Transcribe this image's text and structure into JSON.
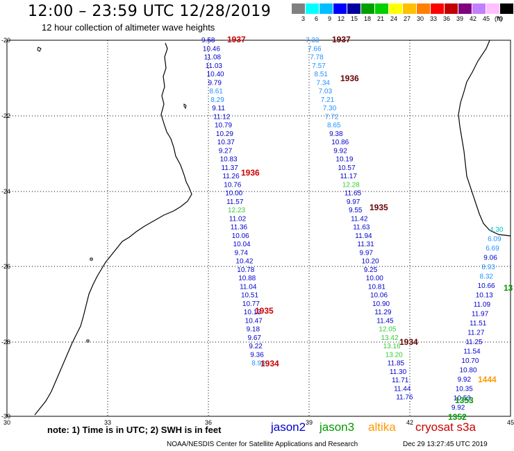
{
  "header": {
    "title": "12:00 – 23:59 UTC 12/28/2019",
    "subtitle": "12 hour collection of altimeter wave heights"
  },
  "colorbar": {
    "colors": [
      "#808080",
      "#00ffff",
      "#00bfff",
      "#0000ff",
      "#0000a0",
      "#00a000",
      "#00d000",
      "#ffff00",
      "#ffc000",
      "#ff8000",
      "#ff0000",
      "#c00000",
      "#800080",
      "#c080ff",
      "#ffc0ff",
      "#000000"
    ],
    "labels": [
      "3",
      "6",
      "9",
      "12",
      "15",
      "18",
      "21",
      "24",
      "27",
      "30",
      "33",
      "36",
      "39",
      "42",
      "45",
      "70"
    ],
    "unit": "(ft)"
  },
  "axes": {
    "x_ticks": [
      "30",
      "33",
      "36",
      "39",
      "42",
      "45"
    ],
    "y_ticks": [
      "-20",
      "-22",
      "-24",
      "-26",
      "-28",
      "-30"
    ]
  },
  "map": {
    "satellite_colors": {
      "jason2": "#0000cc",
      "jason3": "#009900",
      "altika": "#ff9900",
      "cryosat": "#cc0000"
    },
    "passes": [
      {
        "label": "1937",
        "color": "#cc0000"
      },
      {
        "label": "1936",
        "color": "#cc0000"
      },
      {
        "label": "1935",
        "color": "#cc0000"
      },
      {
        "label": "1934",
        "color": "#cc0000"
      },
      {
        "label": "1937",
        "color": "#660000"
      },
      {
        "label": "1936",
        "color": "#660000"
      },
      {
        "label": "1935",
        "color": "#660000"
      },
      {
        "label": "1934",
        "color": "#660000"
      },
      {
        "label": "1444",
        "color": "#ff9900"
      },
      {
        "label": "1353",
        "color": "#009900"
      },
      {
        "label": "1352",
        "color": "#009900"
      },
      {
        "label": "13",
        "color": "#009900"
      }
    ],
    "track1": [
      "9.58",
      "10.46",
      "11.08",
      "11.03",
      "10.40",
      "9.79",
      "8.61",
      "8.29",
      "9.11",
      "11.12",
      "10.79",
      "10.29",
      "10.37",
      "9.27",
      "10.83",
      "11.37",
      "11.26",
      "10.76",
      "10.00",
      "11.57",
      "12.23",
      "11.02",
      "11.36",
      "10.06",
      "10.04",
      "9.74",
      "10.42",
      "10.78",
      "10.88",
      "11.04",
      "10.51",
      "10.77",
      "10.13",
      "10.47",
      "9.18",
      "9.67",
      "9.22",
      "9.36",
      "8.98"
    ],
    "track2": [
      "7.33",
      "7.66",
      "7.78",
      "7.57",
      "8.51",
      "7.34",
      "7.03",
      "7.21",
      "7.30",
      "7.72",
      "8.65",
      "9.38",
      "10.86",
      "9.92",
      "10.19",
      "10.57",
      "11.17",
      "12.28",
      "11.65",
      "9.97",
      "9.55",
      "11.42",
      "11.63",
      "11.94",
      "11.31",
      "9.97",
      "10.20",
      "9.25",
      "10.00",
      "10.81",
      "10.06",
      "10.90",
      "11.29",
      "11.45",
      "12.05",
      "13.42",
      "13.16",
      "13.20",
      "11.85",
      "11.30",
      "11.71",
      "11.44",
      "11.76"
    ],
    "track3": [
      "4.30",
      "6.09",
      "6.69",
      "9.06",
      "8.93",
      "8.32",
      "10.66",
      "10.13",
      "11.09",
      "11.97",
      "11.51",
      "11.27",
      "11.25",
      "11.54",
      "10.70",
      "10.80",
      "9.92",
      "10.35",
      "10.53",
      "9.92"
    ]
  },
  "footer": {
    "note": "note:  1) Time is in UTC;  2) SWH is in feet",
    "legend": [
      {
        "name": "jason2",
        "color": "#0000cc"
      },
      {
        "name": "jason3",
        "color": "#009900"
      },
      {
        "name": "altika",
        "color": "#ff9900"
      },
      {
        "name": "cryosat s3a",
        "color": "#cc0000"
      }
    ],
    "credit": "NOAA/NESDIS Center for Satellite Applications and Research",
    "timestamp": "Dec 29 13:27:45 UTC 2019"
  }
}
